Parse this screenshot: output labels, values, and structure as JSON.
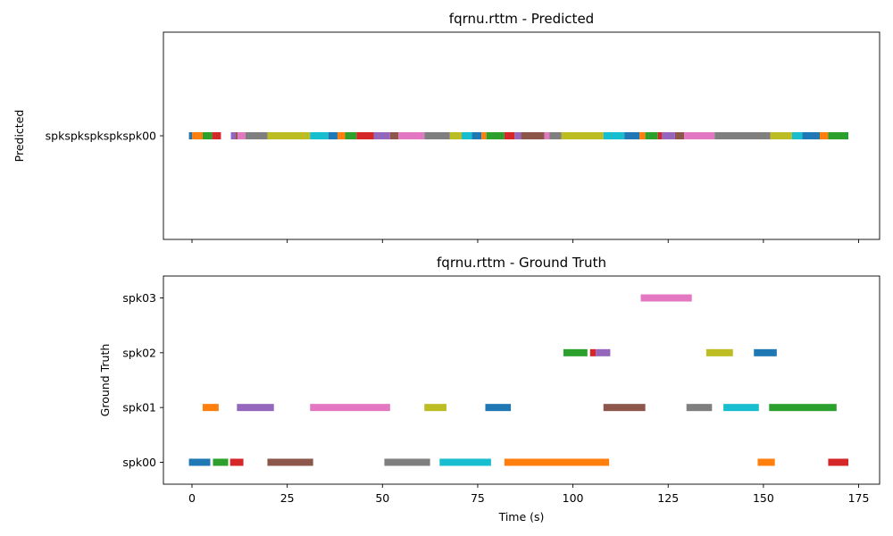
{
  "chart_data": [
    {
      "type": "timeline",
      "title": "fqrnu.rttm - Predicted",
      "ylabel": "Predicted",
      "xlabel": "",
      "xlim": [
        -7.5,
        180.5
      ],
      "x_ticks": [
        0,
        25,
        50,
        75,
        100,
        125,
        150,
        175
      ],
      "show_x_tick_labels": false,
      "categories": [
        "spkspkspkspkspk00"
      ],
      "segments": [
        {
          "row": "spkspkspkspkspk00",
          "start": -0.8,
          "end": 0.0,
          "color": "#1f77b4"
        },
        {
          "row": "spkspkspkspkspk00",
          "start": 0.0,
          "end": 2.8,
          "color": "#ff7f0e"
        },
        {
          "row": "spkspkspkspkspk00",
          "start": 2.8,
          "end": 5.3,
          "color": "#2ca02c"
        },
        {
          "row": "spkspkspkspkspk00",
          "start": 5.3,
          "end": 7.6,
          "color": "#d62728"
        },
        {
          "row": "spkspkspkspkspk00",
          "start": 10.2,
          "end": 11.5,
          "color": "#9467bd"
        },
        {
          "row": "spkspkspkspkspk00",
          "start": 11.5,
          "end": 12.0,
          "color": "#8c564b"
        },
        {
          "row": "spkspkspkspkspk00",
          "start": 12.0,
          "end": 14.0,
          "color": "#e377c2"
        },
        {
          "row": "spkspkspkspkspk00",
          "start": 14.0,
          "end": 19.8,
          "color": "#7f7f7f"
        },
        {
          "row": "spkspkspkspkspk00",
          "start": 19.8,
          "end": 31.0,
          "color": "#bcbd22"
        },
        {
          "row": "spkspkspkspkspk00",
          "start": 31.0,
          "end": 35.8,
          "color": "#17becf"
        },
        {
          "row": "spkspkspkspkspk00",
          "start": 35.8,
          "end": 38.2,
          "color": "#1f77b4"
        },
        {
          "row": "spkspkspkspkspk00",
          "start": 38.2,
          "end": 40.2,
          "color": "#ff7f0e"
        },
        {
          "row": "spkspkspkspkspk00",
          "start": 40.2,
          "end": 43.2,
          "color": "#2ca02c"
        },
        {
          "row": "spkspkspkspkspk00",
          "start": 43.2,
          "end": 47.7,
          "color": "#d62728"
        },
        {
          "row": "spkspkspkspkspk00",
          "start": 47.7,
          "end": 52.0,
          "color": "#9467bd"
        },
        {
          "row": "spkspkspkspkspk00",
          "start": 52.0,
          "end": 54.2,
          "color": "#8c564b"
        },
        {
          "row": "spkspkspkspkspk00",
          "start": 54.2,
          "end": 61.0,
          "color": "#e377c2"
        },
        {
          "row": "spkspkspkspkspk00",
          "start": 61.0,
          "end": 67.7,
          "color": "#7f7f7f"
        },
        {
          "row": "spkspkspkspkspk00",
          "start": 67.7,
          "end": 70.8,
          "color": "#bcbd22"
        },
        {
          "row": "spkspkspkspkspk00",
          "start": 70.8,
          "end": 73.5,
          "color": "#17becf"
        },
        {
          "row": "spkspkspkspkspk00",
          "start": 73.5,
          "end": 76.0,
          "color": "#1f77b4"
        },
        {
          "row": "spkspkspkspkspk00",
          "start": 76.0,
          "end": 77.3,
          "color": "#ff7f0e"
        },
        {
          "row": "spkspkspkspkspk00",
          "start": 77.3,
          "end": 82.0,
          "color": "#2ca02c"
        },
        {
          "row": "spkspkspkspkspk00",
          "start": 82.0,
          "end": 84.7,
          "color": "#d62728"
        },
        {
          "row": "spkspkspkspkspk00",
          "start": 84.7,
          "end": 86.4,
          "color": "#9467bd"
        },
        {
          "row": "spkspkspkspkspk00",
          "start": 86.4,
          "end": 92.5,
          "color": "#8c564b"
        },
        {
          "row": "spkspkspkspkspk00",
          "start": 92.5,
          "end": 93.8,
          "color": "#e377c2"
        },
        {
          "row": "spkspkspkspkspk00",
          "start": 93.8,
          "end": 97.0,
          "color": "#7f7f7f"
        },
        {
          "row": "spkspkspkspkspk00",
          "start": 97.0,
          "end": 108.0,
          "color": "#bcbd22"
        },
        {
          "row": "spkspkspkspkspk00",
          "start": 108.0,
          "end": 113.5,
          "color": "#17becf"
        },
        {
          "row": "spkspkspkspkspk00",
          "start": 113.5,
          "end": 117.5,
          "color": "#1f77b4"
        },
        {
          "row": "spkspkspkspkspk00",
          "start": 117.5,
          "end": 119.0,
          "color": "#ff7f0e"
        },
        {
          "row": "spkspkspkspkspk00",
          "start": 119.0,
          "end": 122.3,
          "color": "#2ca02c"
        },
        {
          "row": "spkspkspkspkspk00",
          "start": 122.3,
          "end": 123.3,
          "color": "#d62728"
        },
        {
          "row": "spkspkspkspkspk00",
          "start": 123.3,
          "end": 126.8,
          "color": "#9467bd"
        },
        {
          "row": "spkspkspkspkspk00",
          "start": 126.8,
          "end": 129.2,
          "color": "#8c564b"
        },
        {
          "row": "spkspkspkspkspk00",
          "start": 129.2,
          "end": 137.2,
          "color": "#e377c2"
        },
        {
          "row": "spkspkspkspkspk00",
          "start": 137.2,
          "end": 151.8,
          "color": "#7f7f7f"
        },
        {
          "row": "spkspkspkspkspk00",
          "start": 151.8,
          "end": 157.5,
          "color": "#bcbd22"
        },
        {
          "row": "spkspkspkspkspk00",
          "start": 157.5,
          "end": 160.2,
          "color": "#17becf"
        },
        {
          "row": "spkspkspkspkspk00",
          "start": 160.2,
          "end": 164.8,
          "color": "#1f77b4"
        },
        {
          "row": "spkspkspkspkspk00",
          "start": 164.8,
          "end": 167.0,
          "color": "#ff7f0e"
        },
        {
          "row": "spkspkspkspkspk00",
          "start": 167.0,
          "end": 172.3,
          "color": "#2ca02c"
        }
      ]
    },
    {
      "type": "timeline",
      "title": "fqrnu.rttm - Ground Truth",
      "ylabel": "Ground Truth",
      "xlabel": "Time (s)",
      "xlim": [
        -7.5,
        180.5
      ],
      "x_ticks": [
        0,
        25,
        50,
        75,
        100,
        125,
        150,
        175
      ],
      "show_x_tick_labels": true,
      "categories": [
        "spk00",
        "spk01",
        "spk02",
        "spk03"
      ],
      "segments": [
        {
          "row": "spk00",
          "start": -0.8,
          "end": 4.8,
          "color": "#1f77b4"
        },
        {
          "row": "spk00",
          "start": 5.5,
          "end": 9.5,
          "color": "#2ca02c"
        },
        {
          "row": "spk00",
          "start": 10.0,
          "end": 13.5,
          "color": "#d62728"
        },
        {
          "row": "spk00",
          "start": 19.8,
          "end": 31.8,
          "color": "#8c564b"
        },
        {
          "row": "spk00",
          "start": 50.5,
          "end": 62.5,
          "color": "#7f7f7f"
        },
        {
          "row": "spk00",
          "start": 65.0,
          "end": 78.5,
          "color": "#17becf"
        },
        {
          "row": "spk00",
          "start": 82.0,
          "end": 109.5,
          "color": "#ff7f0e"
        },
        {
          "row": "spk00",
          "start": 148.5,
          "end": 153.0,
          "color": "#ff7f0e"
        },
        {
          "row": "spk00",
          "start": 167.0,
          "end": 172.3,
          "color": "#d62728"
        },
        {
          "row": "spk01",
          "start": 2.8,
          "end": 7.0,
          "color": "#ff7f0e"
        },
        {
          "row": "spk01",
          "start": 11.8,
          "end": 21.5,
          "color": "#9467bd"
        },
        {
          "row": "spk01",
          "start": 31.0,
          "end": 52.0,
          "color": "#e377c2"
        },
        {
          "row": "spk01",
          "start": 61.0,
          "end": 66.8,
          "color": "#bcbd22"
        },
        {
          "row": "spk01",
          "start": 77.0,
          "end": 83.7,
          "color": "#1f77b4"
        },
        {
          "row": "spk01",
          "start": 108.0,
          "end": 119.0,
          "color": "#8c564b"
        },
        {
          "row": "spk01",
          "start": 129.8,
          "end": 136.5,
          "color": "#7f7f7f"
        },
        {
          "row": "spk01",
          "start": 139.5,
          "end": 148.8,
          "color": "#17becf"
        },
        {
          "row": "spk01",
          "start": 151.5,
          "end": 169.2,
          "color": "#2ca02c"
        },
        {
          "row": "spk02",
          "start": 97.5,
          "end": 103.8,
          "color": "#2ca02c"
        },
        {
          "row": "spk02",
          "start": 104.5,
          "end": 106.0,
          "color": "#d62728"
        },
        {
          "row": "spk02",
          "start": 106.0,
          "end": 109.8,
          "color": "#9467bd"
        },
        {
          "row": "spk02",
          "start": 135.0,
          "end": 142.0,
          "color": "#bcbd22"
        },
        {
          "row": "spk02",
          "start": 147.5,
          "end": 153.5,
          "color": "#1f77b4"
        },
        {
          "row": "spk03",
          "start": 117.8,
          "end": 131.2,
          "color": "#e377c2"
        }
      ]
    }
  ]
}
